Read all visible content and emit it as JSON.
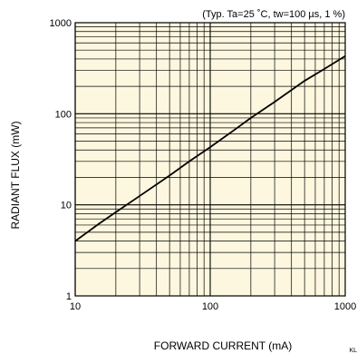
{
  "chart_data": {
    "type": "line",
    "conditions": "(Typ. Ta=25 ˚C, tw=100 µs, 1 %)",
    "xlabel": "FORWARD CURRENT (mA)",
    "ylabel": "RADIANT FLUX (mW)",
    "x_scale": "log",
    "y_scale": "log",
    "xlim": [
      10,
      1000
    ],
    "ylim": [
      1,
      1000
    ],
    "x_ticks": [
      10,
      100,
      1000
    ],
    "x_tick_labels": [
      "10",
      "100",
      "1000"
    ],
    "y_ticks": [
      1,
      10,
      100,
      1000
    ],
    "y_tick_labels": [
      "1",
      "10",
      "100",
      "1000"
    ],
    "grid": true,
    "colors": {
      "plot_background": "#fdf7df",
      "grid": "#000000",
      "line": "#000000"
    },
    "series": [
      {
        "x": [
          10,
          15,
          20,
          30,
          50,
          70,
          100,
          150,
          200,
          300,
          500,
          700,
          1000
        ],
        "y": [
          4,
          6.2,
          8.3,
          12.5,
          21,
          30,
          43,
          66,
          90,
          135,
          230,
          310,
          430
        ]
      }
    ]
  },
  "corner_mark": "KL"
}
